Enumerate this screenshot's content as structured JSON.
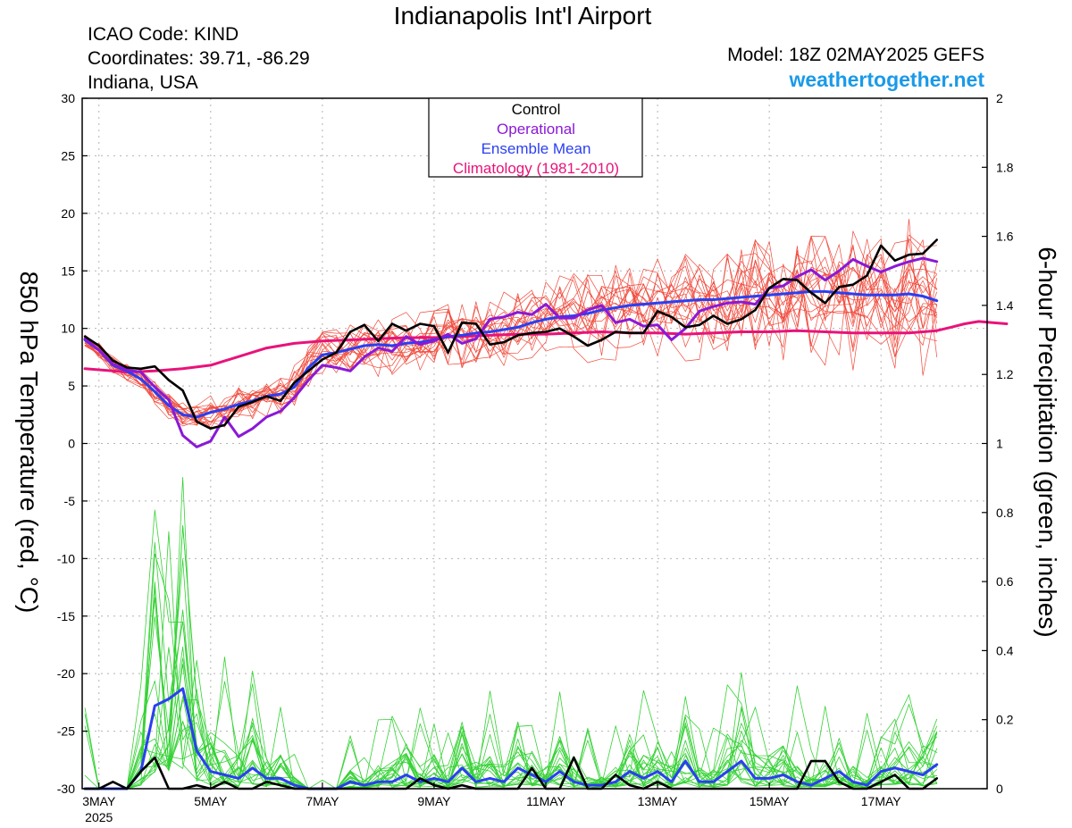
{
  "header": {
    "title": "Indianapolis Int'l Airport",
    "icao": "ICAO Code: KIND",
    "coordinates": "Coordinates: 39.71, -86.29",
    "location": "Indiana, USA",
    "model": "Model: 18Z 02MAY2025 GEFS",
    "website": "weathertogether.net"
  },
  "chart_data": {
    "type": "line",
    "xlabel": "",
    "ylabel_left": "850 hPa Temperature (red, °C)",
    "ylabel_right": "6-hour Precipitation (green, inches)",
    "x_unit": "days from 00Z 3MAY2025",
    "xlim": [
      -0.3,
      15.9
    ],
    "ylim_left": [
      -30,
      30
    ],
    "ylim_right": [
      0,
      2
    ],
    "x_ticks": [
      {
        "x": 0,
        "label": "3MAY",
        "sublabel": "2025"
      },
      {
        "x": 2,
        "label": "5MAY"
      },
      {
        "x": 4,
        "label": "7MAY"
      },
      {
        "x": 6,
        "label": "9MAY"
      },
      {
        "x": 8,
        "label": "11MAY"
      },
      {
        "x": 10,
        "label": "13MAY"
      },
      {
        "x": 12,
        "label": "15MAY"
      },
      {
        "x": 14,
        "label": "17MAY"
      }
    ],
    "y_ticks_left": [
      "30",
      "25",
      "20",
      "15",
      "10",
      "5",
      "0",
      "-5",
      "-10",
      "-15",
      "-20",
      "-25",
      "-30"
    ],
    "y_ticks_right": [
      "2",
      "1.8",
      "1.6",
      "1.4",
      "1.2",
      "1",
      "0.8",
      "0.6",
      "0.4",
      "0.2",
      "0"
    ],
    "grid": true,
    "legend": {
      "position": "top-center",
      "entries": [
        {
          "label": "Control",
          "color": "#000000"
        },
        {
          "label": "Operational",
          "color": "#8a19d6"
        },
        {
          "label": "Ensemble Mean",
          "color": "#2a3ff2"
        },
        {
          "label": "Climatology (1981-2010)",
          "color": "#e8137a"
        }
      ]
    },
    "colors": {
      "members_temp": "#f04a3c",
      "members_precip": "#33d133",
      "control": "#000000",
      "operational": "#8a19d6",
      "ensemble_mean": "#2a3ff2",
      "climatology": "#e8137a",
      "grid": "#b4b4b4"
    },
    "temperature": {
      "x_start": -0.25,
      "step": 0.25,
      "control": [
        9.3,
        8.5,
        7.2,
        6.6,
        6.5,
        6.7,
        5.5,
        4.6,
        1.9,
        1.3,
        1.6,
        3.2,
        3.6,
        4.1,
        3.7,
        5.3,
        6.3,
        7.3,
        7.9,
        9.7,
        10.3,
        8.9,
        10.4,
        9.8,
        10.4,
        10.2,
        7.9,
        10.5,
        10.4,
        8.6,
        8.8,
        9.4,
        9.6,
        9.7,
        10.0,
        9.3,
        8.5,
        9.0,
        9.7,
        9.6,
        9.6,
        11.5,
        11.0,
        10.1,
        10.3,
        11.1,
        10.4,
        10.8,
        11.6,
        13.5,
        14.3,
        14.2,
        13.1,
        12.2,
        13.6,
        13.8,
        14.6,
        17.2,
        15.9,
        16.4,
        16.5,
        17.7
      ],
      "operational": [
        9.1,
        8.1,
        6.9,
        6.4,
        6.2,
        4.9,
        3.8,
        0.7,
        -0.3,
        0.2,
        2.3,
        0.6,
        1.3,
        2.3,
        2.8,
        4.0,
        5.5,
        6.8,
        6.6,
        6.3,
        7.5,
        8.3,
        8.0,
        9.3,
        8.6,
        8.9,
        9.5,
        8.7,
        9.1,
        10.8,
        11.0,
        11.4,
        11.2,
        12.1,
        10.9,
        10.9,
        11.6,
        12.0,
        10.5,
        10.8,
        10.2,
        10.3,
        9.0,
        10.0,
        11.5,
        11.9,
        12.2,
        12.3,
        12.1,
        13.5,
        13.7,
        14.5,
        15.1,
        14.2,
        15.0,
        16.0,
        15.4,
        14.9,
        15.4,
        15.8,
        16.1,
        15.8
      ],
      "ensemble_mean": [
        9.0,
        8.1,
        6.8,
        6.3,
        5.6,
        4.5,
        3.3,
        2.5,
        2.3,
        2.7,
        3.0,
        3.4,
        3.7,
        4.1,
        4.3,
        4.9,
        6.6,
        7.7,
        7.9,
        8.2,
        8.5,
        8.6,
        8.5,
        8.7,
        8.8,
        9.0,
        9.3,
        9.4,
        9.6,
        9.7,
        9.9,
        10.1,
        10.5,
        10.8,
        11.0,
        11.1,
        11.3,
        11.6,
        11.8,
        12.0,
        12.1,
        12.2,
        12.3,
        12.4,
        12.5,
        12.5,
        12.6,
        12.7,
        12.8,
        12.9,
        13.0,
        13.1,
        13.2,
        13.2,
        13.1,
        13.0,
        12.9,
        12.9,
        12.9,
        13.0,
        12.8,
        12.4
      ],
      "climatology": [
        6.5,
        6.4,
        6.3,
        6.2,
        6.3,
        6.5,
        6.8,
        8.3,
        8.7,
        8.9,
        9.0,
        9.1,
        9.2,
        9.2,
        9.3,
        9.4,
        9.5,
        9.5,
        9.6,
        9.7,
        9.6,
        9.6,
        9.5,
        9.6,
        9.7,
        9.7,
        9.8,
        9.7,
        9.6,
        9.6,
        9.6,
        9.8,
        10.1,
        10.4,
        10.6,
        10.5,
        10.4
      ],
      "climatology_x": [
        -0.25,
        0.0,
        0.25,
        0.5,
        1.0,
        1.5,
        2.0,
        3.0,
        3.5,
        4.0,
        4.5,
        5.0,
        5.5,
        6.0,
        6.5,
        7.0,
        7.5,
        8.0,
        8.5,
        9.0,
        9.5,
        10.0,
        10.5,
        11.0,
        11.5,
        12.0,
        12.5,
        13.0,
        13.5,
        14.0,
        14.5,
        15.0,
        15.25,
        15.5,
        15.75,
        16.0,
        16.25
      ]
    },
    "precipitation": {
      "x_start": -0.25,
      "step": 0.25,
      "control": [
        0,
        0,
        0.02,
        0,
        0.05,
        0.09,
        0,
        0,
        0.01,
        0,
        0.02,
        0,
        0,
        0.02,
        0.01,
        0,
        0,
        0,
        0,
        0,
        0,
        0,
        0,
        0,
        0.03,
        0.01,
        0,
        0.01,
        0,
        0,
        0,
        0,
        0.06,
        0,
        0,
        0.09,
        0,
        0,
        0.04,
        0.01,
        0,
        0.02,
        0,
        0,
        0,
        0,
        0,
        0,
        0,
        0,
        0,
        0,
        0.08,
        0.08,
        0.02,
        0,
        0,
        0.02,
        0.04,
        0,
        0,
        0.03
      ],
      "ensemble_mean": [
        0,
        0,
        0,
        0,
        0.05,
        0.24,
        0.26,
        0.29,
        0.11,
        0.05,
        0.04,
        0.03,
        0.06,
        0.03,
        0.03,
        0.01,
        0,
        0,
        0,
        0.02,
        0.01,
        0.02,
        0.02,
        0.04,
        0.02,
        0.03,
        0.02,
        0.06,
        0.02,
        0.03,
        0.02,
        0.06,
        0.04,
        0.02,
        0.05,
        0.02,
        0.01,
        0.01,
        0.02,
        0.05,
        0.03,
        0.05,
        0.02,
        0.08,
        0.02,
        0.02,
        0.05,
        0.08,
        0.03,
        0.03,
        0.04,
        0.02,
        0.01,
        0.03,
        0.05,
        0.02,
        0.01,
        0.05,
        0.06,
        0.05,
        0.04,
        0.07
      ]
    }
  }
}
